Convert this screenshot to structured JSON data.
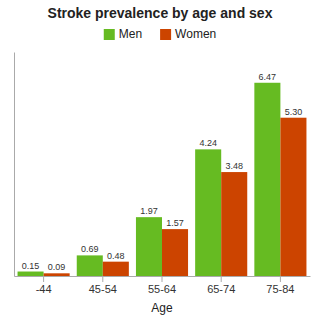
{
  "chart_data": {
    "type": "bar",
    "title": "Stroke prevalence by age and sex",
    "xlabel": "Age",
    "categories": [
      "-44",
      "45-54",
      "55-64",
      "65-74",
      "75-84"
    ],
    "series": [
      {
        "name": "Men",
        "color": "#66BB22",
        "values": [
          0.15,
          0.69,
          1.97,
          4.24,
          6.47
        ],
        "value_labels": [
          "0.15",
          "0.69",
          "1.97",
          "4.24",
          "6.47"
        ]
      },
      {
        "name": "Women",
        "color": "#CC4400",
        "values": [
          0.09,
          0.48,
          1.57,
          3.48,
          5.3
        ],
        "value_labels": [
          "0.09",
          "0.48",
          "1.57",
          "3.48",
          "5.30"
        ]
      }
    ],
    "ylim": [
      0,
      7.5
    ],
    "data_labels": true,
    "tick_labels": "x",
    "legend": "top",
    "grid": false
  }
}
